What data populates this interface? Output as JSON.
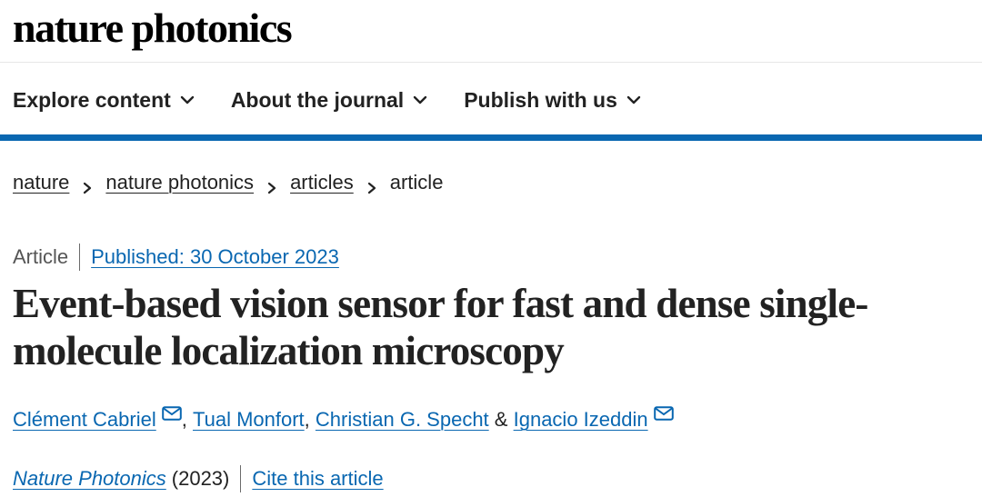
{
  "header": {
    "brand": "nature photonics"
  },
  "nav": {
    "items": [
      {
        "label": "Explore content"
      },
      {
        "label": "About the journal"
      },
      {
        "label": "Publish with us"
      }
    ]
  },
  "breadcrumb": {
    "items": [
      "nature",
      "nature photonics",
      "articles"
    ],
    "current": "article"
  },
  "article": {
    "type": "Article",
    "published": "Published: 30 October 2023",
    "title": "Event-based vision sensor for fast and dense single-molecule localization microscopy",
    "authors": [
      "Clément Cabriel",
      "Tual Monfort",
      "Christian G. Specht",
      "Ignacio Izeddin"
    ],
    "author_separators": [
      ",",
      ",",
      "&"
    ],
    "journal": "Nature Photonics",
    "year": "(2023)",
    "cite_label": "Cite this article"
  },
  "colors": {
    "link": "#0967b1",
    "nav_rule": "#0967b1",
    "text": "#222222"
  },
  "icons": {
    "nav": "chevron-down-icon",
    "crumb": "chevron-right-icon",
    "author": "mail-icon"
  }
}
